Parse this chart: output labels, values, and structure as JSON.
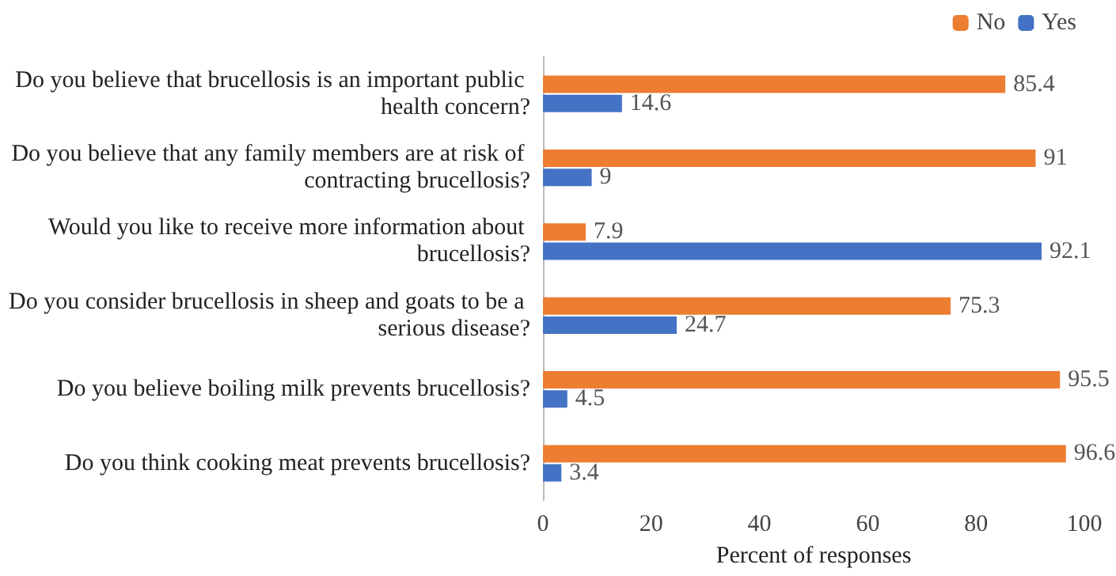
{
  "chart_data": {
    "type": "bar",
    "orientation": "horizontal",
    "xlabel": "Percent of responses",
    "categories": [
      "Do you believe that brucellosis is an important public health concern?",
      "Do you believe that any family members are at risk of contracting brucellosis?",
      "Would you like to receive more information about brucellosis?",
      "Do you consider brucellosis in sheep and goats to be a serious disease?",
      "Do you believe boiling milk prevents brucellosis?",
      "Do you think cooking meat prevents brucellosis?"
    ],
    "series": [
      {
        "name": "No",
        "color": "#ed7d31",
        "values": [
          85.4,
          91,
          7.9,
          75.3,
          95.5,
          96.6
        ]
      },
      {
        "name": "Yes",
        "color": "#4472c4",
        "values": [
          14.6,
          9,
          92.1,
          24.7,
          4.5,
          3.4
        ]
      }
    ],
    "xlim": [
      0,
      100
    ],
    "xticks": [
      0,
      20,
      40,
      60,
      80,
      100
    ],
    "data_labels": true,
    "legend": "top right",
    "grid": false
  }
}
